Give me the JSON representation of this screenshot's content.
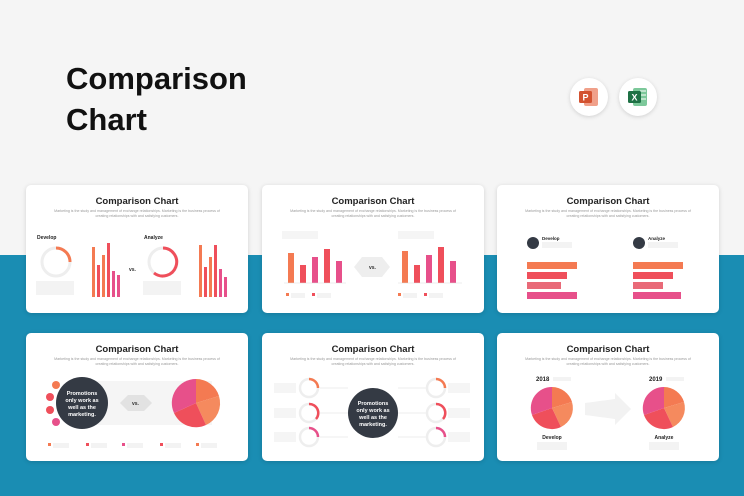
{
  "page": {
    "title_line1": "Comparison",
    "title_line2": "Chart"
  },
  "apps": [
    {
      "name": "powerpoint-icon",
      "color": "#d35230",
      "letter": "P"
    },
    {
      "name": "excel-icon",
      "color": "#1e7145",
      "letter": "X"
    }
  ],
  "slide_common": {
    "title": "Comparison Chart",
    "subtitle": "Marketing is the study and management of exchange relationships. Marketing is the business process of creating relationships with and satisfying customers."
  },
  "slide1": {
    "left_label": "Develop",
    "right_label": "Analyze",
    "vs": "vs."
  },
  "slide2": {
    "vs": "vs."
  },
  "slide3": {
    "left_label": "Develop",
    "right_label": "Analyze"
  },
  "slide4": {
    "center_text": "Promotions only work as well as the marketing.",
    "vs": "vs."
  },
  "slide5": {
    "center_text": "Promotions only work as well as the marketing."
  },
  "slide6": {
    "left_year": "2018",
    "right_year": "2019",
    "left_label": "Develop",
    "right_label": "Analyze"
  },
  "colors": {
    "accent_orange": "#f47a52",
    "accent_red": "#ef4f5b",
    "accent_pink": "#e7508a",
    "dark_circle": "#343a44",
    "band_blue": "#1a8db3"
  }
}
